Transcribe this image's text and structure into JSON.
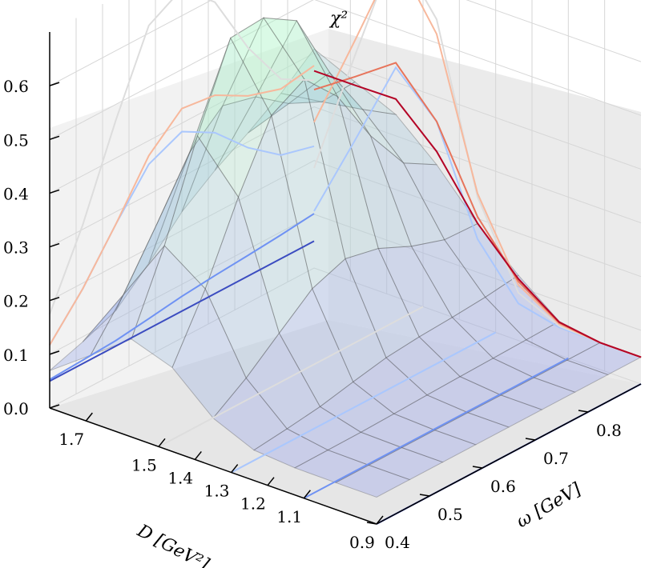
{
  "chart_data": {
    "type": "surface3d",
    "zlabel": "χ²",
    "xlabel": "D [GeV²]",
    "ylabel": "ω [GeV]",
    "z_ticks": [
      "0.0",
      "0.1",
      "0.2",
      "0.3",
      "0.4",
      "0.5",
      "0.6"
    ],
    "d_ticks": [
      "1.7",
      "1.5",
      "1.4",
      "1.3",
      "1.2",
      "1.1",
      "0.9"
    ],
    "omega_ticks": [
      "0.4",
      "0.5",
      "0.6",
      "0.7",
      "0.8"
    ],
    "zlim": [
      0.0,
      0.7
    ],
    "d_range": [
      0.9,
      1.8
    ],
    "omega_range": [
      0.4,
      0.9
    ],
    "grid": true,
    "colormap": [
      "#3b4cc0",
      "#6f92f3",
      "#aac7fd",
      "#dddddd",
      "#f7b89c",
      "#e7745b",
      "#b40426"
    ]
  }
}
